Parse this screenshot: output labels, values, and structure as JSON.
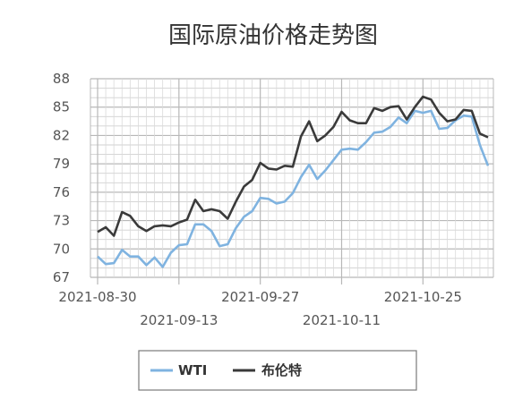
{
  "chart_data": {
    "type": "line",
    "title": "国际原油价格走势图",
    "xlabel": "",
    "ylabel": "",
    "ylim": [
      67,
      88
    ],
    "yticks": [
      67,
      70,
      73,
      76,
      79,
      82,
      85,
      88
    ],
    "grid": true,
    "legend_position": "bottom",
    "x_tick_labels": [
      {
        "date": "2021-08-30",
        "index": 0
      },
      {
        "date": "2021-09-13",
        "index": 10
      },
      {
        "date": "2021-09-27",
        "index": 20
      },
      {
        "date": "2021-10-11",
        "index": 30
      },
      {
        "date": "2021-10-25",
        "index": 40
      }
    ],
    "x": [
      "2021-08-30",
      "2021-08-31",
      "2021-09-01",
      "2021-09-02",
      "2021-09-03",
      "2021-09-06",
      "2021-09-07",
      "2021-09-08",
      "2021-09-09",
      "2021-09-10",
      "2021-09-13",
      "2021-09-14",
      "2021-09-15",
      "2021-09-16",
      "2021-09-17",
      "2021-09-20",
      "2021-09-21",
      "2021-09-22",
      "2021-09-23",
      "2021-09-24",
      "2021-09-27",
      "2021-09-28",
      "2021-09-29",
      "2021-09-30",
      "2021-10-01",
      "2021-10-04",
      "2021-10-05",
      "2021-10-06",
      "2021-10-07",
      "2021-10-08",
      "2021-10-11",
      "2021-10-12",
      "2021-10-13",
      "2021-10-14",
      "2021-10-15",
      "2021-10-18",
      "2021-10-19",
      "2021-10-20",
      "2021-10-21",
      "2021-10-22",
      "2021-10-25",
      "2021-10-26",
      "2021-10-27",
      "2021-10-28",
      "2021-10-29",
      "2021-11-01",
      "2021-11-02",
      "2021-11-03",
      "2021-11-04"
    ],
    "series": [
      {
        "name": "WTI",
        "color": "#7fb3e0",
        "values": [
          69.2,
          68.4,
          68.5,
          69.9,
          69.2,
          69.2,
          68.3,
          69.1,
          68.1,
          69.6,
          70.4,
          70.5,
          72.6,
          72.6,
          71.9,
          70.3,
          70.5,
          72.2,
          73.4,
          74.0,
          75.4,
          75.3,
          74.8,
          75.0,
          75.9,
          77.6,
          78.9,
          77.4,
          78.3,
          79.4,
          80.5,
          80.6,
          80.5,
          81.3,
          82.3,
          82.4,
          82.9,
          83.9,
          83.3,
          84.6,
          84.4,
          84.6,
          82.7,
          82.8,
          83.6,
          84.1,
          84.0,
          81.0,
          78.8
        ]
      },
      {
        "name": "布伦特",
        "color": "#3a3a3a",
        "values": [
          71.8,
          72.3,
          71.4,
          73.9,
          73.5,
          72.4,
          71.9,
          72.4,
          72.5,
          72.4,
          72.8,
          73.1,
          75.2,
          74.0,
          74.2,
          74.0,
          73.2,
          75.0,
          76.6,
          77.3,
          79.1,
          78.5,
          78.4,
          78.8,
          78.7,
          81.9,
          83.5,
          81.4,
          82.0,
          82.9,
          84.5,
          83.6,
          83.3,
          83.3,
          84.9,
          84.6,
          85.0,
          85.1,
          83.7,
          85.0,
          86.1,
          85.8,
          84.4,
          83.5,
          83.7,
          84.7,
          84.6,
          82.2,
          81.8
        ]
      }
    ]
  }
}
